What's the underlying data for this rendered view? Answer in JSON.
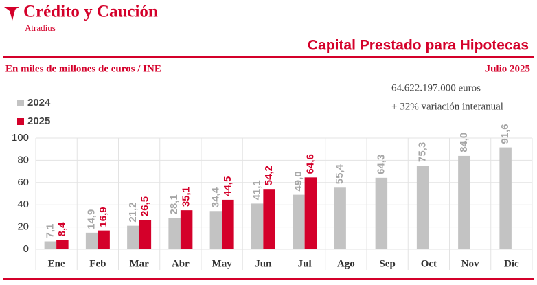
{
  "brand": "Crédito y Caución",
  "brand_sub": "Atradius",
  "chart_data": {
    "type": "bar",
    "title": "Capital Prestado para Hipotecas",
    "subtitle": "En miles de millones de euros / INE",
    "date": "Julio 2025",
    "annotations": [
      "64.622.197.000  euros",
      "+ 32% variación interanual"
    ],
    "categories": [
      "Ene",
      "Feb",
      "Mar",
      "Abr",
      "May",
      "Jun",
      "Jul",
      "Ago",
      "Sep",
      "Oct",
      "Nov",
      "Dic"
    ],
    "series": [
      {
        "name": "2024",
        "color": "#c3c3c3",
        "label_color": "#a6a6a6",
        "values": [
          7.1,
          14.9,
          21.2,
          28.1,
          34.4,
          41.1,
          49.0,
          55.4,
          64.3,
          75.3,
          84.0,
          91.6
        ],
        "value_labels": [
          "7,1",
          "14,9",
          "21,2",
          "28,1",
          "34,4",
          "41,1",
          "49,0",
          "55,4",
          "64,3",
          "75,3",
          "84,0",
          "91,6"
        ]
      },
      {
        "name": "2025",
        "color": "#d4002a",
        "label_color": "#d4002a",
        "values": [
          8.4,
          16.9,
          26.5,
          35.1,
          44.5,
          54.2,
          64.6,
          null,
          null,
          null,
          null,
          null
        ],
        "value_labels": [
          "8,4",
          "16,9",
          "26,5",
          "35,1",
          "44,5",
          "54,2",
          "64,6",
          null,
          null,
          null,
          null,
          null
        ]
      }
    ],
    "ylim": [
      0,
      100
    ],
    "yticks": [
      0,
      20,
      40,
      60,
      80,
      100
    ],
    "grid": true
  }
}
